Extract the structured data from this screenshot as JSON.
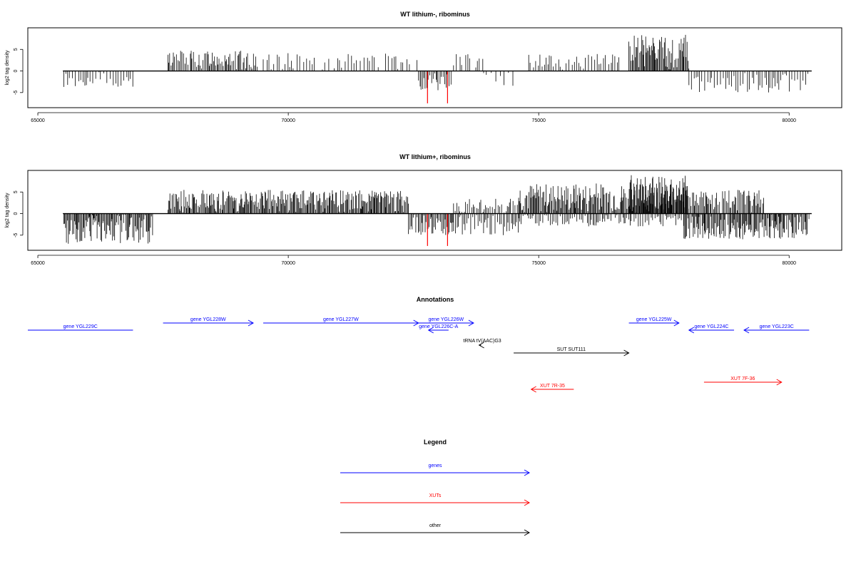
{
  "chart_data": [
    {
      "type": "bar",
      "title": "WT lithium-, ribominus",
      "ylabel": "log2 tag density",
      "xlim": [
        64800,
        81050
      ],
      "ylim": [
        -8.5,
        10
      ],
      "xticks": [
        65000,
        70000,
        75000,
        80000
      ],
      "yticks": [
        -5,
        0,
        5
      ],
      "baseline": {
        "x_start": 65500,
        "x_end": 80450,
        "y": 0
      },
      "highlight_color": "#ff0000",
      "segments": [
        {
          "x_start": 65520,
          "x_end": 66900,
          "sign": -1,
          "max": 4.0,
          "density": 0.35,
          "seed": 11
        },
        {
          "x_start": 67600,
          "x_end": 69400,
          "sign": 1,
          "max": 4.8,
          "density": 0.7,
          "seed": 12
        },
        {
          "x_start": 69500,
          "x_end": 72600,
          "sign": 1,
          "max": 4.2,
          "density": 0.3,
          "seed": 13
        },
        {
          "x_start": 72600,
          "x_end": 73300,
          "sign": -1,
          "max": 4.5,
          "density": 0.6,
          "seed": 14
        },
        {
          "x_start": 73300,
          "x_end": 73900,
          "sign": 1,
          "max": 4.0,
          "density": 0.3,
          "seed": 15
        },
        {
          "x_start": 73900,
          "x_end": 74500,
          "sign": -1,
          "max": 3.5,
          "density": 0.25,
          "seed": 16
        },
        {
          "x_start": 74800,
          "x_end": 76600,
          "sign": 1,
          "max": 4.0,
          "density": 0.35,
          "seed": 17
        },
        {
          "x_start": 76800,
          "x_end": 78000,
          "sign": 1,
          "max": 8.5,
          "density": 1.0,
          "seed": 18
        },
        {
          "x_start": 78000,
          "x_end": 80400,
          "sign": -1,
          "max": 5.0,
          "density": 0.4,
          "seed": 19
        }
      ],
      "highlights": [
        {
          "x": 72780,
          "y": -7.5
        },
        {
          "x": 73180,
          "y": -7.5
        }
      ]
    },
    {
      "type": "bar",
      "title": "WT lithium+, ribominus",
      "ylabel": "log2 tag density",
      "xlim": [
        64800,
        81050
      ],
      "ylim": [
        -8.5,
        10
      ],
      "xticks": [
        65000,
        70000,
        75000,
        80000
      ],
      "yticks": [
        -5,
        0,
        5
      ],
      "baseline": {
        "x_start": 65500,
        "x_end": 80450,
        "y": 0
      },
      "highlight_color": "#ff0000",
      "segments": [
        {
          "x_start": 65520,
          "x_end": 67300,
          "sign": -1,
          "max": 7.0,
          "density": 1.0,
          "seed": 21
        },
        {
          "x_start": 67600,
          "x_end": 72400,
          "sign": 1,
          "max": 5.5,
          "density": 1.0,
          "seed": 22
        },
        {
          "x_start": 72400,
          "x_end": 73300,
          "sign": -1,
          "max": 5.0,
          "density": 0.8,
          "seed": 23
        },
        {
          "x_start": 73300,
          "x_end": 74600,
          "sign": -1,
          "max": 5.0,
          "density": 0.5,
          "seed": 24
        },
        {
          "x_start": 73300,
          "x_end": 74600,
          "sign": 1,
          "max": 3.5,
          "density": 0.5,
          "seed": 25
        },
        {
          "x_start": 74600,
          "x_end": 77900,
          "sign": 1,
          "max": 7.0,
          "density": 1.0,
          "seed": 26
        },
        {
          "x_start": 74600,
          "x_end": 77900,
          "sign": -1,
          "max": 3.0,
          "density": 0.5,
          "seed": 27
        },
        {
          "x_start": 76800,
          "x_end": 78000,
          "sign": 1,
          "max": 9.0,
          "density": 1.0,
          "seed": 28
        },
        {
          "x_start": 77900,
          "x_end": 80400,
          "sign": -1,
          "max": 6.0,
          "density": 1.0,
          "seed": 29
        },
        {
          "x_start": 77900,
          "x_end": 79500,
          "sign": 1,
          "max": 5.5,
          "density": 0.8,
          "seed": 30
        }
      ],
      "highlights": [
        {
          "x": 72780,
          "y": -7.5
        },
        {
          "x": 73180,
          "y": -7.5
        }
      ]
    }
  ],
  "annotations": {
    "title": "Annotations",
    "features": [
      {
        "label": "gene YGL229C",
        "start": 64800,
        "end": 66900,
        "row": 2,
        "strand": "-",
        "color": "#0000ff",
        "arrow": false
      },
      {
        "label": "gene YGL228W",
        "start": 67500,
        "end": 69300,
        "row": 1,
        "strand": "+",
        "color": "#0000ff",
        "arrow": true
      },
      {
        "label": "gene YGL227W",
        "start": 69500,
        "end": 72600,
        "row": 1,
        "strand": "+",
        "color": "#0000ff",
        "arrow": true
      },
      {
        "label": "gene YGL226W",
        "start": 72600,
        "end": 73700,
        "row": 0,
        "strand": "+",
        "color": "#0000ff",
        "arrow": true
      },
      {
        "label": "gene YGL226C-A",
        "start": 72800,
        "end": 73200,
        "row": 2,
        "strand": "-",
        "color": "#0000ff",
        "arrow": true
      },
      {
        "label": "tRNA tV(AAC)G3",
        "start": 73810,
        "end": 73850,
        "row": 3,
        "strand": "-",
        "color": "#000000",
        "arrow": true
      },
      {
        "label": "SUT SUT111",
        "start": 74500,
        "end": 76800,
        "row": 4,
        "strand": "+",
        "color": "#000000",
        "arrow": true
      },
      {
        "label": "gene YGL225W",
        "start": 76800,
        "end": 77800,
        "row": 1,
        "strand": "+",
        "color": "#0000ff",
        "arrow": true
      },
      {
        "label": "gene YGL224C",
        "start": 78000,
        "end": 78900,
        "row": 2,
        "strand": "-",
        "color": "#0000ff",
        "arrow": true
      },
      {
        "label": "gene YGL223C",
        "start": 79100,
        "end": 80400,
        "row": 2,
        "strand": "-",
        "color": "#0000ff",
        "arrow": true
      },
      {
        "label": "XUT 7R-35",
        "start": 74850,
        "end": 75700,
        "row": 7,
        "strand": "-",
        "color": "#ff0000",
        "arrow": true
      },
      {
        "label": "XUT 7F-36",
        "start": 78300,
        "end": 79850,
        "row": 6,
        "strand": "+",
        "color": "#ff0000",
        "arrow": true
      }
    ]
  },
  "legend": {
    "title": "Legend",
    "items": [
      {
        "label": "genes",
        "color": "#0000ff"
      },
      {
        "label": "XUTs",
        "color": "#ff0000"
      },
      {
        "label": "other",
        "color": "#000000"
      }
    ]
  }
}
